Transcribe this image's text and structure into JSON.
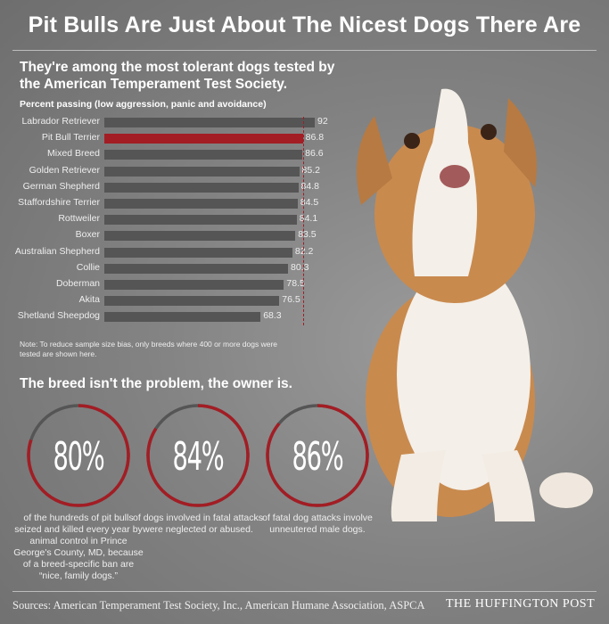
{
  "title": "Pit Bulls Are Just About The Nicest Dogs There Are",
  "subtitle": "They're among the most tolerant dogs tested by the American Temperament Test Society.",
  "chart_data": {
    "type": "bar",
    "orientation": "horizontal",
    "title": "Percent passing (low aggression, panic and avoidance)",
    "categories": [
      "Labrador Retriever",
      "Pit Bull Terrier",
      "Mixed Breed",
      "Golden Retriever",
      "German Shepherd",
      "Staffordshire Terrier",
      "Rottweiler",
      "Boxer",
      "Australian Shepherd",
      "Collie",
      "Doberman",
      "Akita",
      "Shetland Sheepdog"
    ],
    "values": [
      92,
      86.8,
      86.6,
      85.2,
      84.8,
      84.5,
      84.1,
      83.5,
      82.2,
      80.3,
      78.5,
      76.5,
      68.3
    ],
    "highlight": "Pit Bull Terrier",
    "reference_line": 86.8,
    "xlim": [
      0,
      92
    ],
    "colors": {
      "bar": "#555555",
      "highlight": "#a31d24",
      "reference": "#a31d24"
    }
  },
  "note": "Note: To reduce sample size bias, only breeds where 400 or more dogs were tested are shown here.",
  "section2": {
    "heading": "The breed isn't the problem, the owner is.",
    "stats": [
      {
        "value": 80,
        "label": "80%",
        "caption": "of the hundreds of pit bulls seized and killed every year by animal control in Prince George's County, MD, because of a breed-specific ban are “nice, family dogs.”"
      },
      {
        "value": 84,
        "label": "84%",
        "caption": "of dogs involved in fatal attacks were neglected or abused."
      },
      {
        "value": 86,
        "label": "86%",
        "caption": "of fatal dog attacks involve unneutered male dogs."
      }
    ]
  },
  "sources": "Sources: American Temperament Test Society, Inc., American Humane Association, ASPCA",
  "brand": "THE HUFFINGTON POST"
}
